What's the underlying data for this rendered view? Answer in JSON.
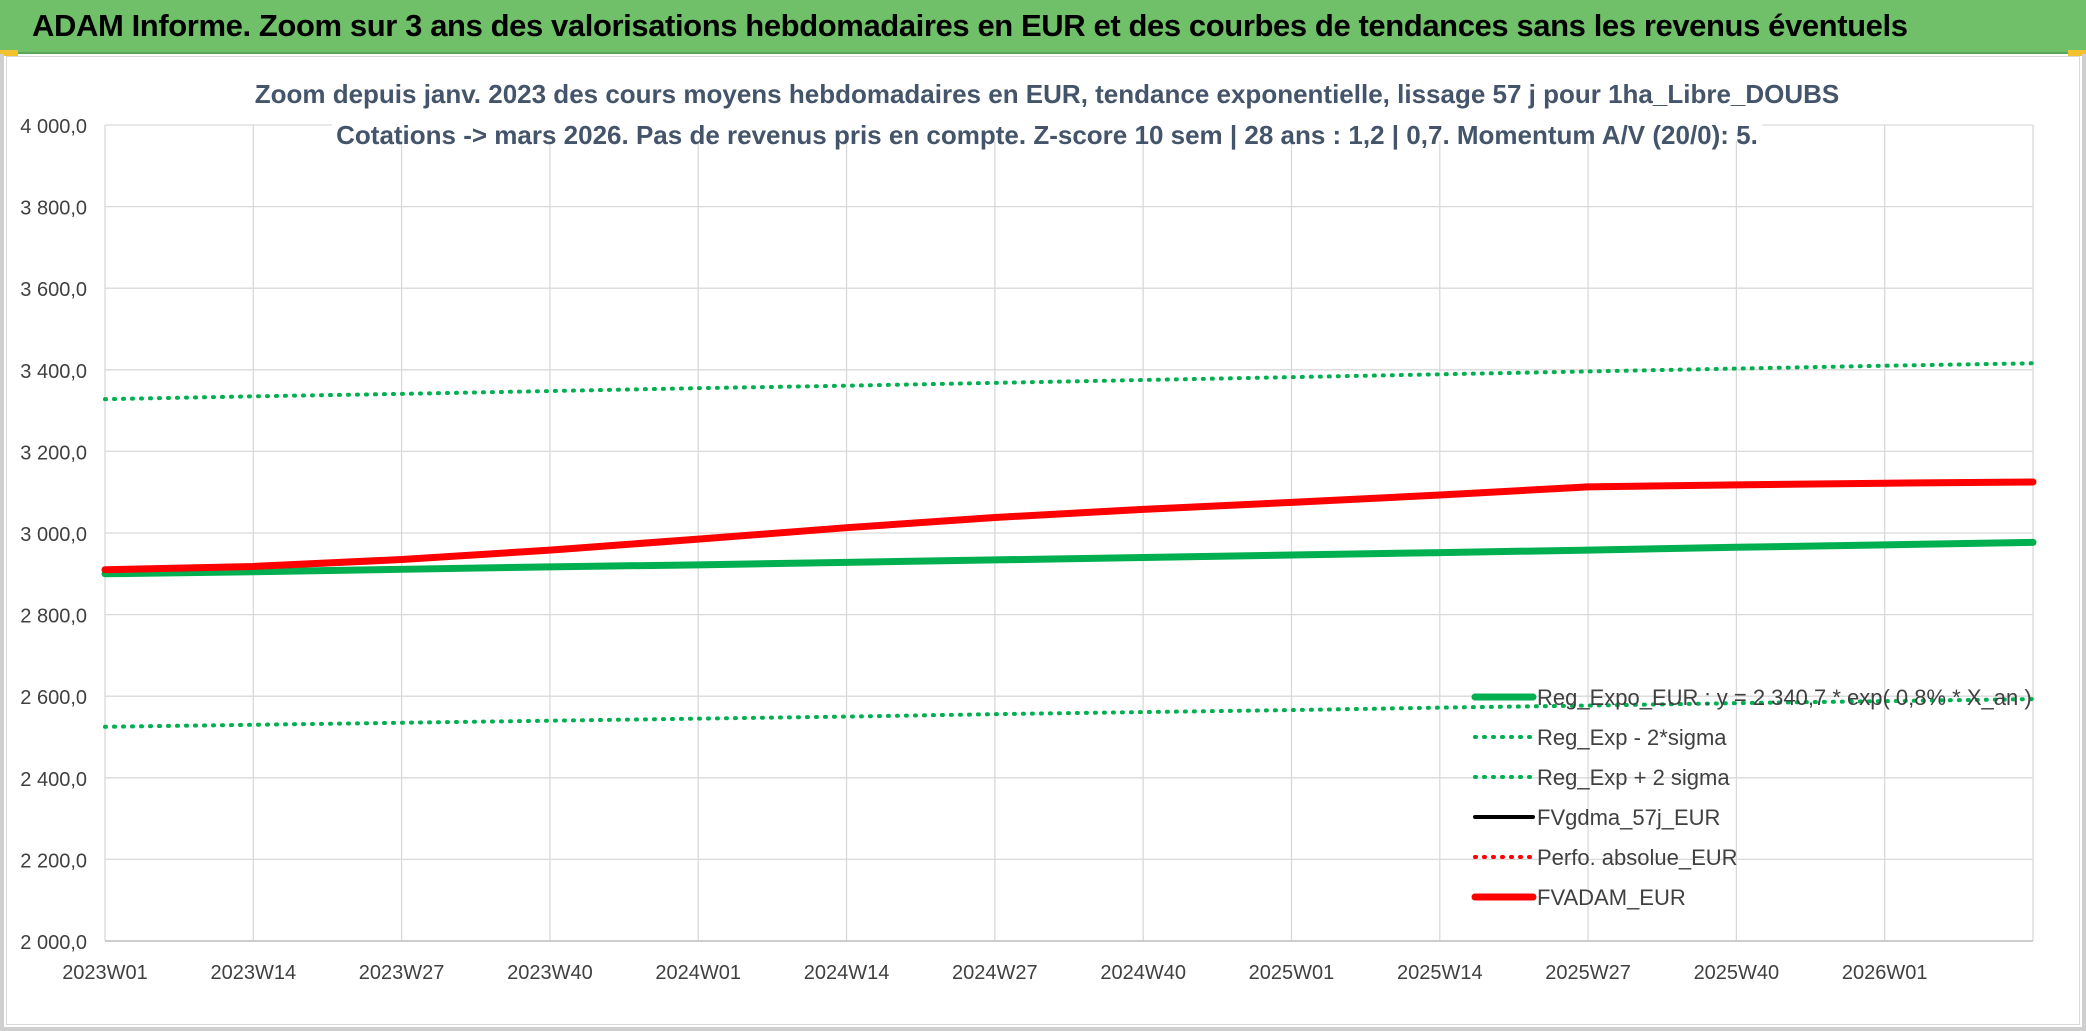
{
  "header": {
    "title": "ADAM Informe. Zoom sur 3 ans des valorisations hebdomadaires en EUR et des courbes de tendances sans les revenus éventuels"
  },
  "colors": {
    "header_bg": "#70c06a",
    "green": "#00b050",
    "red": "#ff0000",
    "black": "#000000",
    "grid": "#d9d9d9",
    "text": "#404040",
    "title_text": "#44546a"
  },
  "chart_data": {
    "type": "line",
    "title_line1": "Zoom depuis janv. 2023 des cours moyens hebdomadaires en EUR, tendance exponentielle, lissage 57 j pour 1ha_Libre_DOUBS",
    "title_line2": "Cotations -> mars 2026. Pas de revenus pris en compte. Z-score 10 sem | 28 ans : 1,2 | 0,7. Momentum A/V (20/0): 5.",
    "ylim": [
      2000,
      4000
    ],
    "y_ticks": [
      "4 000,0",
      "3 800,0",
      "3 600,0",
      "3 400,0",
      "3 200,0",
      "3 000,0",
      "2 800,0",
      "2 600,0",
      "2 400,0",
      "2 200,0",
      "2 000,0"
    ],
    "x_tick_labels": [
      "2023W01",
      "2023W14",
      "2023W27",
      "2023W40",
      "2024W01",
      "2024W14",
      "2024W27",
      "2024W40",
      "2025W01",
      "2025W14",
      "2025W27",
      "2025W40",
      "2026W01"
    ],
    "grid": true,
    "legend_position": "bottom-right",
    "x": [
      "2023W01",
      "2023W14",
      "2023W27",
      "2023W40",
      "2024W01",
      "2024W14",
      "2024W27",
      "2024W40",
      "2025W01",
      "2025W14",
      "2025W27",
      "2025W40",
      "2026W01",
      "2026W13"
    ],
    "series": [
      {
        "name": "Reg_Expo_EUR : y = 2 340,7 * exp( 0,8% * X_an )",
        "color": "#00b050",
        "style": "solid-thick",
        "values": [
          2900,
          2905,
          2911,
          2917,
          2922,
          2928,
          2934,
          2940,
          2946,
          2952,
          2958,
          2965,
          2971,
          2977
        ]
      },
      {
        "name": "Reg_Exp - 2*sigma",
        "color": "#00b050",
        "style": "dotted",
        "values": [
          2525,
          2530,
          2535,
          2540,
          2545,
          2550,
          2556,
          2561,
          2566,
          2572,
          2577,
          2583,
          2588,
          2593
        ]
      },
      {
        "name": "Reg_Exp + 2 sigma",
        "color": "#00b050",
        "style": "dotted",
        "values": [
          3328,
          3335,
          3341,
          3348,
          3355,
          3361,
          3368,
          3375,
          3382,
          3389,
          3396,
          3403,
          3410,
          3416
        ]
      },
      {
        "name": "FVgdma_57j_EUR",
        "color": "#000000",
        "style": "solid",
        "values": [
          2910,
          2918,
          2935,
          2958,
          2985,
          3013,
          3038,
          3058,
          3075,
          3093,
          3113,
          3118,
          3122,
          3125
        ]
      },
      {
        "name": "Perfo. absolue_EUR",
        "color": "#ff0000",
        "style": "dotted",
        "values": [
          2910,
          2918,
          2935,
          2958,
          2985,
          3013,
          3038,
          3058,
          3075,
          3093,
          3113,
          3118,
          3122,
          3125
        ]
      },
      {
        "name": "FVADAM_EUR",
        "color": "#ff0000",
        "style": "solid-thick",
        "values": [
          2910,
          2918,
          2935,
          2958,
          2985,
          3013,
          3038,
          3058,
          3075,
          3093,
          3113,
          3118,
          3122,
          3125
        ]
      }
    ]
  }
}
